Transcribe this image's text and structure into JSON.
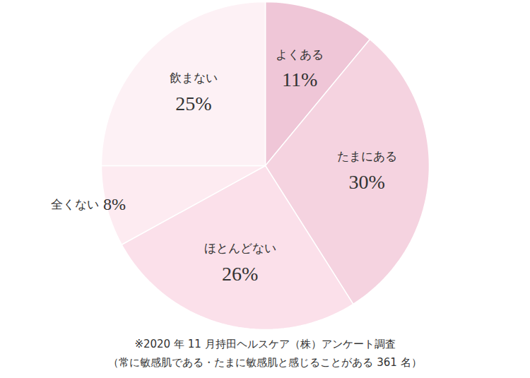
{
  "chart_data": {
    "type": "pie",
    "categories": [
      "よくある",
      "たまにある",
      "ほとんどない",
      "全くない",
      "飲まない"
    ],
    "values": [
      11,
      30,
      26,
      8,
      25
    ],
    "value_labels": [
      "11%",
      "30%",
      "26%",
      "8%",
      "25%"
    ],
    "colors": [
      "#efc6d7",
      "#f5d3e0",
      "#fbe0ea",
      "#fdebf1",
      "#fdf1f5"
    ],
    "data_labels": true,
    "caption": [
      "※2020 年 11 月持田ヘルスケア（株）アンケート調査",
      "（常に敏感肌である・たまに敏感肌と感じることがある 361 名）"
    ]
  }
}
